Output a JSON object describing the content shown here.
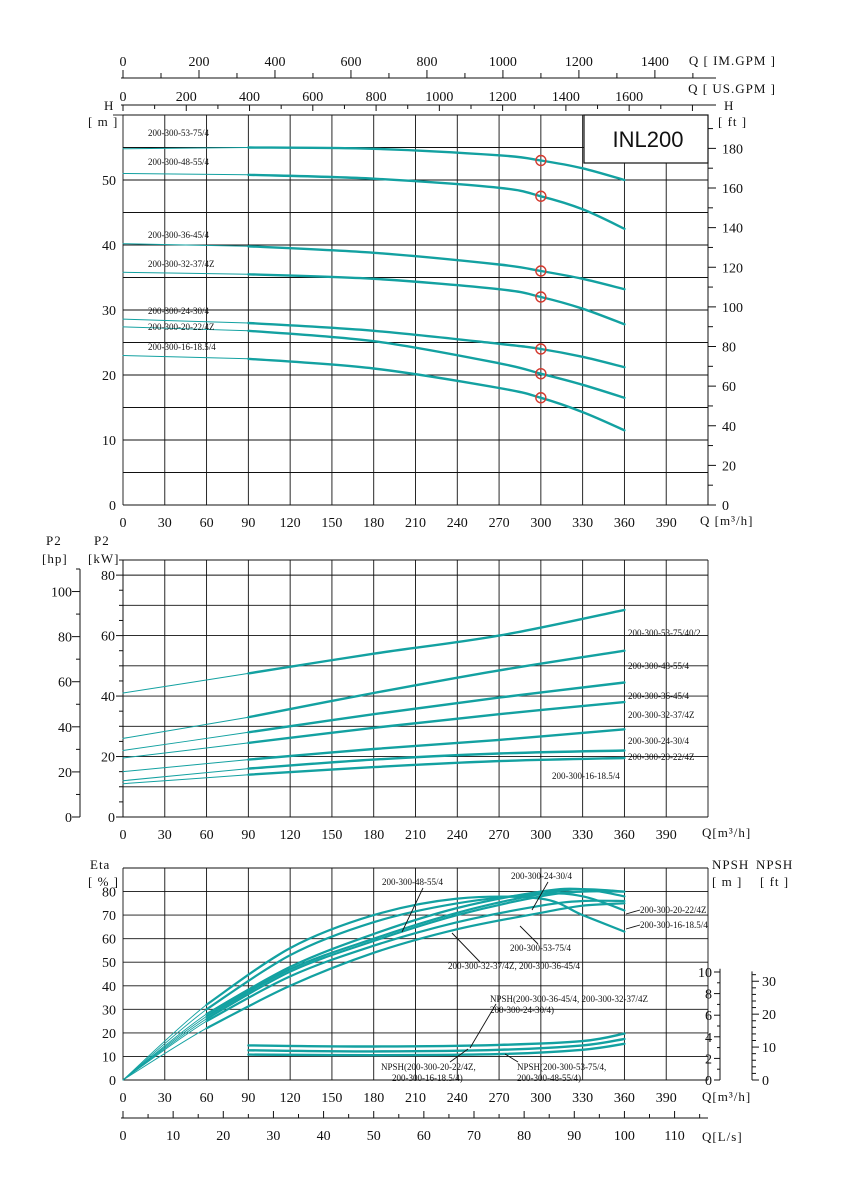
{
  "chart_data": [
    {
      "type": "line",
      "title": "INL200",
      "xlabel": "Q [m³/h]",
      "ylabel": "H [m]",
      "y2label": "H [ft]",
      "top_axis1_label": "Q [ IM.GPM ]",
      "top_axis2_label": "Q [ US.GPM ]",
      "xlim": [
        0,
        420
      ],
      "ylim": [
        0,
        60
      ],
      "x_ticks": [
        0,
        30,
        60,
        90,
        120,
        150,
        180,
        210,
        240,
        270,
        300,
        330,
        360,
        390
      ],
      "y_ticks": [
        0,
        10,
        20,
        30,
        40,
        50
      ],
      "y2_ticks": [
        0,
        20,
        40,
        60,
        80,
        100,
        120,
        140,
        160,
        180
      ],
      "imgpm_ticks": [
        0,
        200,
        400,
        600,
        800,
        1000,
        1200,
        1400
      ],
      "usgpm_ticks": [
        0,
        200,
        400,
        600,
        800,
        1000,
        1200,
        1400,
        1600
      ],
      "rated_flow": 300,
      "series": [
        {
          "name": "200-300-53-75/4",
          "x": [
            0,
            90,
            180,
            270,
            300,
            330,
            360
          ],
          "values": [
            54.8,
            55,
            54.8,
            53.8,
            53,
            51.8,
            50
          ],
          "rated_head": 53
        },
        {
          "name": "200-300-48-55/4",
          "x": [
            0,
            90,
            180,
            270,
            300,
            330,
            360
          ],
          "values": [
            51,
            50.8,
            50.2,
            48.8,
            47.5,
            45.5,
            42.5
          ],
          "rated_head": 47.5
        },
        {
          "name": "200-300-36-45/4",
          "x": [
            0,
            90,
            180,
            270,
            300,
            330,
            360
          ],
          "values": [
            40.2,
            39.8,
            38.8,
            37,
            36,
            34.8,
            33.2
          ],
          "rated_head": 36
        },
        {
          "name": "200-300-32-37/4Z",
          "x": [
            0,
            90,
            180,
            270,
            300,
            330,
            360
          ],
          "values": [
            35.8,
            35.5,
            34.8,
            33.2,
            32,
            30.2,
            27.8
          ],
          "rated_head": 32
        },
        {
          "name": "200-300-24-30/4",
          "x": [
            0,
            90,
            180,
            270,
            300,
            330,
            360
          ],
          "values": [
            28.6,
            28,
            26.8,
            24.8,
            24,
            22.8,
            21.2
          ],
          "rated_head": 24
        },
        {
          "name": "200-300-20-22/4Z",
          "x": [
            0,
            90,
            180,
            270,
            300,
            330,
            360
          ],
          "values": [
            27.4,
            26.8,
            25.2,
            21.8,
            20.2,
            18.5,
            16.5
          ],
          "rated_head": 20.2
        },
        {
          "name": "200-300-16-18.5/4",
          "x": [
            0,
            90,
            180,
            270,
            300,
            330,
            360
          ],
          "values": [
            23,
            22.5,
            21,
            18,
            16.5,
            14.3,
            11.5
          ],
          "rated_head": 16.5
        }
      ]
    },
    {
      "type": "line",
      "title": "",
      "xlabel": "Q[m³/h]",
      "ylabel": "P2 [kW]",
      "y2label": "P2 [hp]",
      "xlim": [
        0,
        420
      ],
      "ylim": [
        0,
        85
      ],
      "x_ticks": [
        0,
        30,
        60,
        90,
        120,
        150,
        180,
        210,
        240,
        270,
        300,
        330,
        360,
        390
      ],
      "y_ticks": [
        0,
        20,
        40,
        60,
        80
      ],
      "hp_ticks": [
        0,
        20,
        40,
        60,
        80,
        100
      ],
      "series": [
        {
          "name": "200-300-53-75/40/2",
          "x": [
            0,
            90,
            180,
            270,
            360
          ],
          "values": [
            41,
            47.5,
            54,
            60,
            68.5
          ]
        },
        {
          "name": "200-300-48-55/4",
          "x": [
            0,
            90,
            180,
            270,
            360
          ],
          "values": [
            26,
            33,
            41,
            48.5,
            55
          ]
        },
        {
          "name": "200-300-36-45/4",
          "x": [
            0,
            90,
            180,
            270,
            360
          ],
          "values": [
            22,
            28,
            34,
            39.5,
            44.5
          ]
        },
        {
          "name": "200-300-32-37/4Z",
          "x": [
            0,
            90,
            180,
            270,
            360
          ],
          "values": [
            19.5,
            24.5,
            29.5,
            34,
            38
          ]
        },
        {
          "name": "200-300-24-30/4",
          "x": [
            0,
            90,
            180,
            270,
            360
          ],
          "values": [
            15,
            19,
            22.5,
            25.5,
            29
          ]
        },
        {
          "name": "200-300-20-22/4Z",
          "x": [
            0,
            90,
            180,
            270,
            360
          ],
          "values": [
            12,
            16,
            19,
            21,
            22
          ]
        },
        {
          "name": "200-300-16-18.5/4",
          "x": [
            0,
            90,
            180,
            270,
            360
          ],
          "values": [
            11,
            14,
            16.5,
            18.5,
            19.5
          ]
        }
      ]
    },
    {
      "type": "line",
      "title": "",
      "xlabel": "Q[m³/h]",
      "x2label": "Q[L/s]",
      "ylabel": "Eta [ % ]",
      "y2label": "NPSH [ m ]",
      "y3label": "NPSH [ ft ]",
      "xlim": [
        0,
        420
      ],
      "ylim": [
        0,
        90
      ],
      "x_ticks": [
        0,
        30,
        60,
        90,
        120,
        150,
        180,
        210,
        240,
        270,
        300,
        330,
        360,
        390
      ],
      "y_ticks": [
        0,
        10,
        20,
        30,
        40,
        50,
        60,
        70,
        80
      ],
      "npsh_m_ticks": [
        0,
        2,
        4,
        6,
        8,
        10
      ],
      "npsh_ft_ticks": [
        0,
        10,
        20,
        30
      ],
      "ls_ticks": [
        0,
        10,
        20,
        30,
        40,
        50,
        60,
        70,
        80,
        90,
        100,
        110
      ],
      "efficiency_series": [
        {
          "name": "200-300-48-55/4",
          "x": [
            0,
            60,
            120,
            180,
            240,
            300,
            330,
            360
          ],
          "values": [
            0,
            32,
            56,
            70,
            77,
            77,
            70,
            63
          ]
        },
        {
          "name": "200-300-53-75/4",
          "x": [
            0,
            60,
            120,
            180,
            240,
            300,
            330,
            360
          ],
          "values": [
            0,
            30,
            53,
            67,
            75,
            79,
            78,
            72
          ]
        },
        {
          "name": "200-300-24-30/4",
          "x": [
            0,
            60,
            120,
            180,
            240,
            300,
            330,
            360
          ],
          "values": [
            0,
            28,
            48,
            62,
            73,
            80,
            81,
            78
          ]
        },
        {
          "name": "200-300-20-22/4Z",
          "x": [
            0,
            60,
            120,
            180,
            240,
            300,
            330,
            360
          ],
          "values": [
            0,
            27,
            47,
            60,
            71,
            79,
            81,
            80
          ]
        },
        {
          "name": "200-300-16-18.5/4",
          "x": [
            0,
            60,
            120,
            180,
            240,
            300,
            330,
            360
          ],
          "values": [
            0,
            26,
            46,
            59,
            70,
            78,
            80,
            80
          ]
        },
        {
          "name": "200-300-36-45/4",
          "x": [
            0,
            60,
            120,
            180,
            240,
            300,
            330,
            360
          ],
          "values": [
            0,
            25,
            44,
            57,
            67,
            74,
            76,
            76
          ]
        },
        {
          "name": "200-300-32-37/4Z",
          "x": [
            0,
            60,
            120,
            180,
            240,
            300,
            330,
            360
          ],
          "values": [
            0,
            22,
            40,
            54,
            64,
            71,
            74,
            75
          ]
        }
      ],
      "npsh_series": [
        {
          "name": "NPSH(200-300-36-45/4, 200-300-32-37/4Z, 200-300-24-30/4)",
          "x": [
            90,
            180,
            270,
            330,
            360
          ],
          "values_m": [
            3.2,
            3.1,
            3.25,
            3.6,
            4.3
          ]
        },
        {
          "name": "NPSH(200-300-53-75/4, 200-300-48-55/4)",
          "x": [
            90,
            180,
            270,
            330,
            360
          ],
          "values_m": [
            2.75,
            2.65,
            2.8,
            3.2,
            3.8
          ]
        },
        {
          "name": "NPSH(200-300-20-22/4Z, 200-300-16-18.5/4)",
          "x": [
            90,
            180,
            270,
            330,
            360
          ],
          "values_m": [
            2.35,
            2.3,
            2.4,
            2.8,
            3.35
          ]
        }
      ],
      "annotations": [
        "200-300-48-55/4",
        "200-300-24-30/4",
        "200-300-20-22/4Z",
        "200-300-16-18.5/4",
        "200-300-53-75/4",
        "200-300-32-37/4Z, 200-300-36-45/4",
        "NPSH(200-300-36-45/4, 200-300-32-37/4Z",
        "200-300-24-30/4)",
        "NPSH(200-300-20-22/4Z,",
        "200-300-16-18.5/4)",
        "NPSH(200-300-53-75/4,",
        "200-300-48-55/4)"
      ]
    }
  ]
}
